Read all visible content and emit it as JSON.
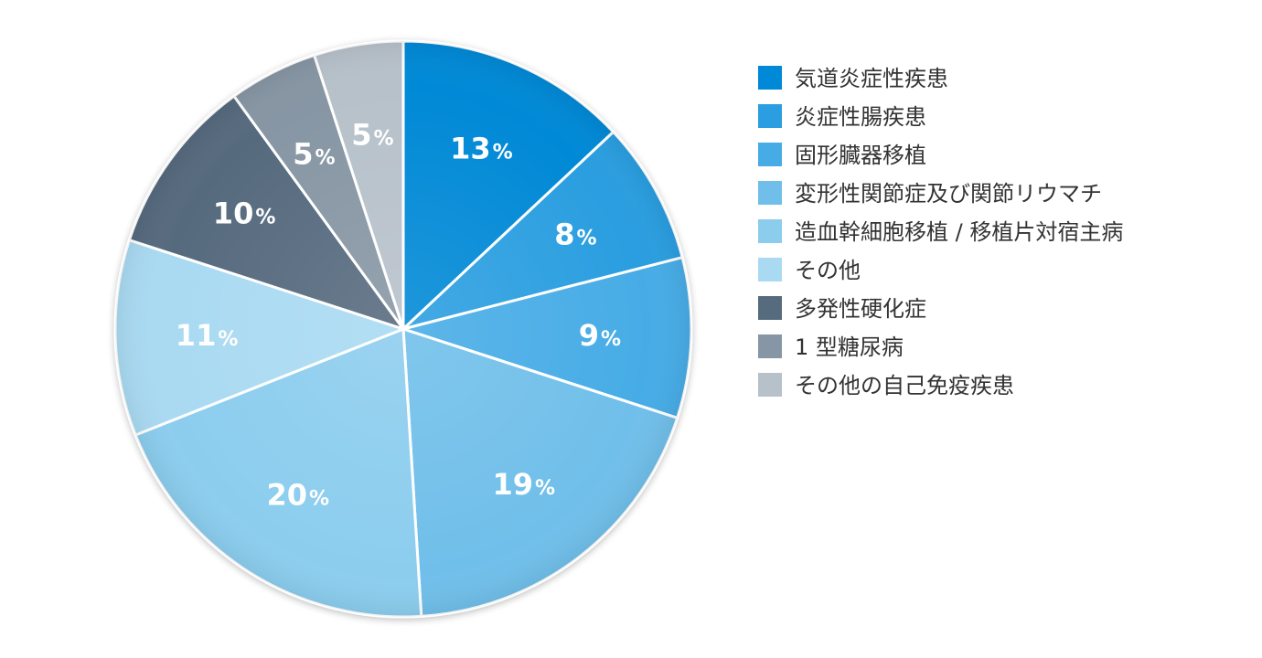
{
  "chart_data": {
    "type": "pie",
    "start": "top",
    "direction": "clockwise",
    "slices": [
      {
        "label": "気道炎症性疾患",
        "value": 13,
        "value_label": "13",
        "color": "#0089d6"
      },
      {
        "label": "炎症性腸疾患",
        "value": 8,
        "value_label": "8",
        "color": "#2a9ee0"
      },
      {
        "label": "固形臓器移植",
        "value": 9,
        "value_label": "9",
        "color": "#47ace6"
      },
      {
        "label": "変形性関節症及び関節リウマチ",
        "value": 19,
        "value_label": "19",
        "color": "#6fbfea"
      },
      {
        "label": "造血幹細胞移植 / 移植片対宿主病",
        "value": 20,
        "value_label": "20",
        "color": "#8ccdee"
      },
      {
        "label": "その他",
        "value": 11,
        "value_label": "11",
        "color": "#a9daf2"
      },
      {
        "label": "多発性硬化症",
        "value": 10,
        "value_label": "10",
        "color": "#566b7e"
      },
      {
        "label": "1 型糖尿病",
        "value": 5,
        "value_label": "5",
        "color": "#8796a4"
      },
      {
        "label": "その他の自己免疫疾患",
        "value": 5,
        "value_label": "5",
        "color": "#b7c1ca"
      }
    ],
    "percent_sign": "%",
    "legend_position": "right"
  }
}
